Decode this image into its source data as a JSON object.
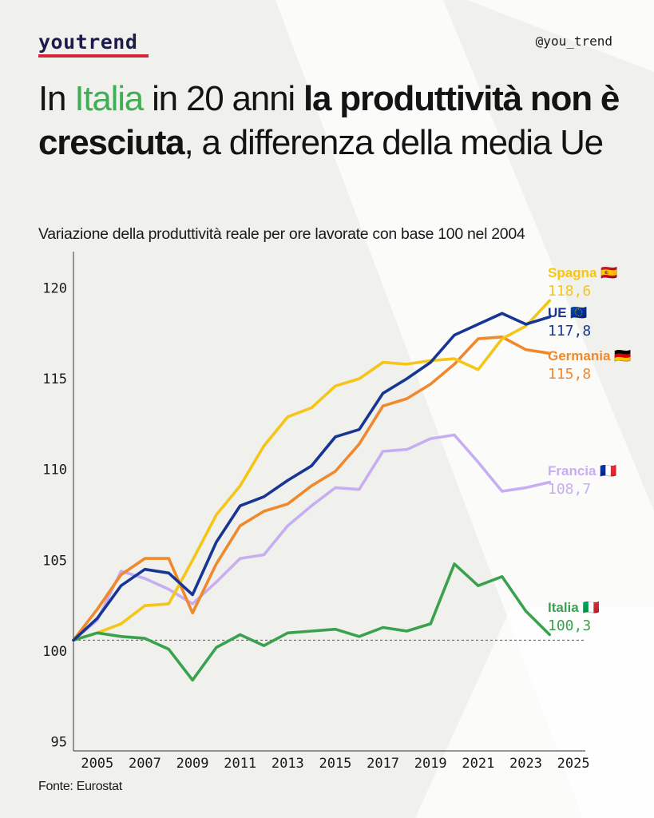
{
  "brand": {
    "logo_text": "youtrend",
    "handle": "@you_trend"
  },
  "headline": {
    "p1": "In ",
    "p2": "Italia",
    "p3": " in 20 anni ",
    "p4": "la produttività non è cresciuta",
    "p5": ", a differenza della media Ue"
  },
  "subtitle": "Variazione della produttività reale per ore lavorate con base 100 nel 2004",
  "source": "Fonte: Eurostat",
  "colors": {
    "spagna": "#f5c518",
    "ue": "#173593",
    "germania": "#f0892c",
    "francia": "#c7aef2",
    "italia": "#3aa24f",
    "background": "#f0f0ec"
  },
  "chart_data": {
    "type": "line",
    "x": [
      2004,
      2005,
      2006,
      2007,
      2008,
      2009,
      2010,
      2011,
      2012,
      2013,
      2014,
      2015,
      2016,
      2017,
      2018,
      2019,
      2020,
      2021,
      2022,
      2023,
      2024
    ],
    "xticks": [
      2005,
      2007,
      2009,
      2011,
      2013,
      2015,
      2017,
      2019,
      2021,
      2023,
      2025
    ],
    "yticks": [
      95,
      100,
      105,
      110,
      115,
      120
    ],
    "xlim": [
      2004,
      2025.5
    ],
    "ylim": [
      94.5,
      122
    ],
    "reference_line": 100.6,
    "series": [
      {
        "key": "spagna",
        "name": "Spagna",
        "flag": "🇪🇸",
        "end_label": "118,6",
        "color": "#f5c518",
        "values": [
          100.6,
          101.0,
          101.5,
          102.5,
          102.6,
          105.0,
          107.5,
          109.1,
          111.3,
          112.9,
          113.4,
          114.6,
          115.0,
          115.9,
          115.8,
          116.0,
          116.1,
          115.5,
          117.2,
          117.9,
          119.3
        ]
      },
      {
        "key": "ue",
        "name": "UE",
        "flag": "🇪🇺",
        "end_label": "117,8",
        "color": "#173593",
        "values": [
          100.6,
          101.8,
          103.6,
          104.5,
          104.3,
          103.1,
          106.0,
          108.0,
          108.5,
          109.4,
          110.2,
          111.8,
          112.2,
          114.2,
          115.0,
          115.9,
          117.4,
          118.0,
          118.6,
          118.0,
          118.4
        ]
      },
      {
        "key": "germania",
        "name": "Germania",
        "flag": "🇩🇪",
        "end_label": "115,8",
        "color": "#f0892c",
        "values": [
          100.6,
          102.3,
          104.2,
          105.1,
          105.1,
          102.1,
          104.8,
          106.9,
          107.7,
          108.1,
          109.1,
          109.9,
          111.4,
          113.5,
          113.9,
          114.7,
          115.8,
          117.2,
          117.3,
          116.6,
          116.4
        ]
      },
      {
        "key": "francia",
        "name": "Francia",
        "flag": "🇫🇷",
        "end_label": "108,7",
        "color": "#c7aef2",
        "values": [
          100.6,
          101.7,
          104.4,
          104.0,
          103.4,
          102.6,
          103.8,
          105.1,
          105.3,
          106.9,
          108.0,
          109.0,
          108.9,
          111.0,
          111.1,
          111.7,
          111.9,
          110.4,
          108.8,
          109.0,
          109.3
        ]
      },
      {
        "key": "italia",
        "name": "Italia",
        "flag": "🇮🇹",
        "end_label": "100,3",
        "color": "#3aa24f",
        "values": [
          100.6,
          101.0,
          100.8,
          100.7,
          100.1,
          98.4,
          100.2,
          100.9,
          100.3,
          101.0,
          101.1,
          101.2,
          100.8,
          101.3,
          101.1,
          101.5,
          104.8,
          103.6,
          104.1,
          102.2,
          100.9
        ]
      }
    ]
  }
}
